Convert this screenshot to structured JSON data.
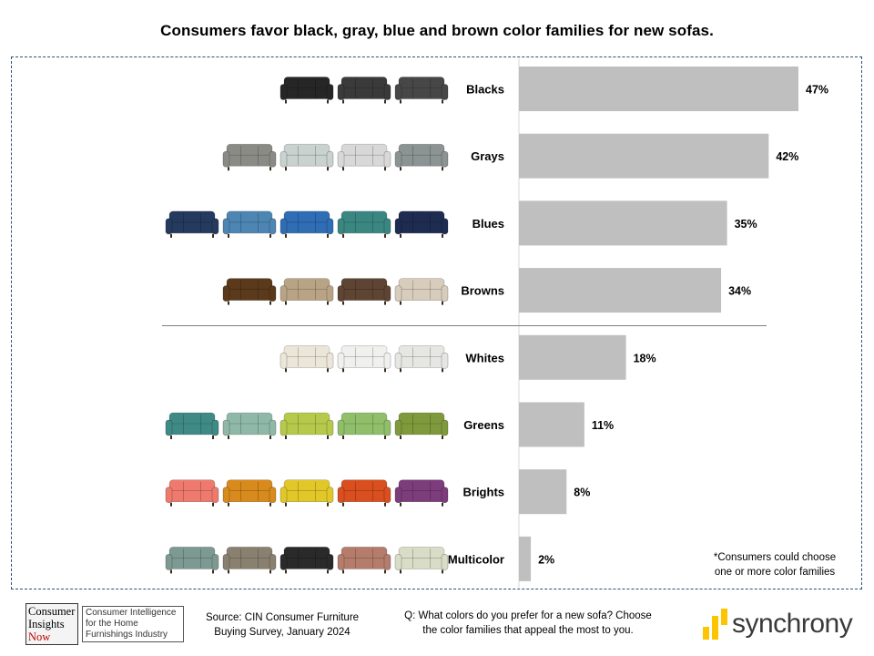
{
  "title": "Consumers favor black, gray, blue and brown color families for new sofas.",
  "chart_data": {
    "type": "bar",
    "orientation": "horizontal",
    "categories": [
      "Blacks",
      "Grays",
      "Blues",
      "Browns",
      "Whites",
      "Greens",
      "Brights",
      "Multicolor"
    ],
    "values": [
      47,
      42,
      35,
      34,
      18,
      11,
      8,
      2
    ],
    "value_labels": [
      "47%",
      "42%",
      "35%",
      "34%",
      "18%",
      "11%",
      "8%",
      "2%"
    ],
    "bar_color": "#bfbfbf",
    "xlim": [
      0,
      50
    ],
    "grid": false,
    "legend": "none",
    "divider_after": "Browns"
  },
  "sofa_swatches": {
    "Blacks": [
      "#262626",
      "#3a3a3a",
      "#474747"
    ],
    "Grays": [
      "#8b8b86",
      "#c9d2cf",
      "#d8d8d8",
      "#8c9393"
    ],
    "Blues": [
      "#243a5e",
      "#4d86b3",
      "#2f6db5",
      "#3a8782",
      "#1e2c52"
    ],
    "Browns": [
      "#5b3a1c",
      "#b9a385",
      "#5e4433",
      "#d8ccbd"
    ],
    "Whites": [
      "#ece6d9",
      "#f0f0ee",
      "#e6e6e2"
    ],
    "Greens": [
      "#3f8a85",
      "#8fb8a8",
      "#b6c94a",
      "#8fbf6a",
      "#7f9a3c"
    ],
    "Brights": [
      "#ee7a6d",
      "#d88a1c",
      "#e2c728",
      "#d94f1f",
      "#7d3d7c"
    ],
    "Multicolor": [
      "#7d9a92",
      "#8a8070",
      "#2a2a2a",
      "#b57c6c",
      "#d9dcc6"
    ]
  },
  "footnote": {
    "line1": "*Consumers could choose",
    "line2": "one or more color families"
  },
  "source": {
    "line1": "Source: CIN Consumer Furniture",
    "line2": "Buying Survey, January 2024"
  },
  "question": {
    "line1": "Q: What colors do you prefer for a new sofa? Choose",
    "line2": "the color families that appeal the most to you."
  },
  "logo_cin": {
    "line1": "Consumer",
    "line2": "Insights",
    "line3": "Now",
    "tag1": "Consumer Intelligence",
    "tag2": "for the Home",
    "tag3": "Furnishings Industry"
  },
  "logo_sync": {
    "text": "synchrony",
    "accent": "#fbc600"
  }
}
